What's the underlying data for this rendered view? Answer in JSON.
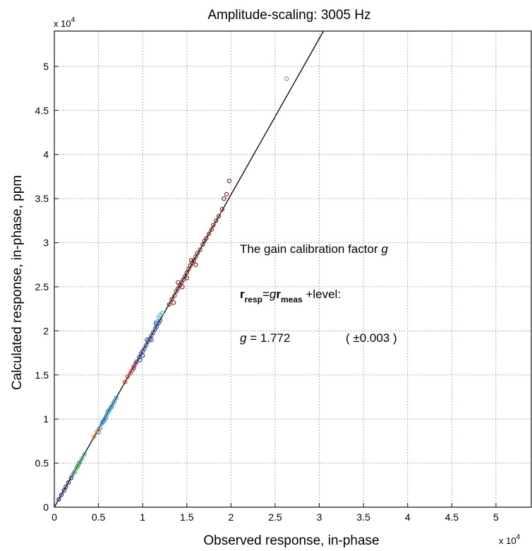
{
  "chart_data": {
    "type": "scatter",
    "title": "Amplitude-scaling:  3005 Hz",
    "xlabel": "Observed response, in-phase",
    "ylabel": "Calculated response, in-phase,  ppm",
    "x_multiplier": "x 10",
    "y_multiplier": "x 10",
    "multiplier_exponent": "4",
    "xlim": [
      0,
      5.4
    ],
    "ylim": [
      0,
      5.4
    ],
    "x_ticks": [
      "0",
      "0.5",
      "1",
      "1.5",
      "2",
      "2.5",
      "3",
      "3.5",
      "4",
      "4.5",
      "5"
    ],
    "y_ticks": [
      "0",
      "0.5",
      "1",
      "1.5",
      "2",
      "2.5",
      "3",
      "3.5",
      "4",
      "4.5",
      "5"
    ],
    "grid": true,
    "fit_line": {
      "slope": 1.772,
      "intercept": 0
    },
    "series": [
      {
        "color": "#1a1a7a",
        "points": [
          [
            0.05,
            0.09
          ],
          [
            0.08,
            0.14
          ],
          [
            0.11,
            0.19
          ],
          [
            0.13,
            0.23
          ],
          [
            0.16,
            0.28
          ],
          [
            0.19,
            0.33
          ]
        ]
      },
      {
        "color": "#2aa8a8",
        "points": [
          [
            0.2,
            0.36
          ],
          [
            0.23,
            0.4
          ],
          [
            0.26,
            0.46
          ],
          [
            0.28,
            0.5
          ],
          [
            0.31,
            0.55
          ],
          [
            0.34,
            0.6
          ]
        ]
      },
      {
        "color": "#58b848",
        "points": [
          [
            0.22,
            0.39
          ],
          [
            0.25,
            0.44
          ],
          [
            0.27,
            0.48
          ],
          [
            0.29,
            0.51
          ]
        ]
      },
      {
        "color": "#e07a20",
        "points": [
          [
            0.45,
            0.8
          ],
          [
            0.48,
            0.85
          ],
          [
            0.5,
            0.88
          ]
        ]
      },
      {
        "color": "#2f8fd8",
        "points": [
          [
            0.5,
            0.85
          ],
          [
            0.52,
            0.9
          ],
          [
            0.54,
            0.95
          ],
          [
            0.56,
            0.98
          ],
          [
            0.57,
            1.0
          ],
          [
            0.59,
            1.04
          ],
          [
            0.6,
            1.07
          ],
          [
            0.62,
            1.1
          ],
          [
            0.64,
            1.13
          ],
          [
            0.66,
            1.17
          ],
          [
            0.68,
            1.2
          ],
          [
            0.7,
            1.24
          ],
          [
            0.55,
            0.97
          ],
          [
            0.61,
            1.09
          ],
          [
            0.65,
            1.14
          ],
          [
            0.58,
            1.01
          ]
        ]
      },
      {
        "color": "#d83020",
        "points": [
          [
            0.8,
            1.42
          ],
          [
            0.83,
            1.48
          ],
          [
            0.86,
            1.52
          ],
          [
            0.88,
            1.55
          ],
          [
            0.9,
            1.6
          ],
          [
            0.92,
            1.63
          ]
        ]
      },
      {
        "color": "#2a3aa8",
        "points": [
          [
            0.9,
            1.58
          ],
          [
            0.93,
            1.65
          ],
          [
            0.96,
            1.7
          ],
          [
            0.98,
            1.74
          ],
          [
            1.0,
            1.77
          ],
          [
            1.02,
            1.8
          ],
          [
            1.04,
            1.84
          ],
          [
            1.06,
            1.88
          ],
          [
            1.08,
            1.91
          ],
          [
            1.1,
            1.95
          ],
          [
            1.12,
            1.98
          ],
          [
            1.14,
            2.02
          ],
          [
            1.16,
            2.05
          ],
          [
            1.18,
            2.09
          ],
          [
            1.2,
            2.12
          ],
          [
            1.0,
            1.72
          ],
          [
            1.05,
            1.9
          ],
          [
            1.1,
            1.9
          ],
          [
            1.15,
            2.08
          ],
          [
            0.97,
            1.67
          ]
        ]
      },
      {
        "color": "#3ab0d8",
        "points": [
          [
            1.15,
            2.1
          ],
          [
            1.18,
            2.15
          ],
          [
            1.2,
            2.18
          ],
          [
            1.22,
            2.2
          ]
        ]
      },
      {
        "color": "#7a1a14",
        "points": [
          [
            1.3,
            2.3
          ],
          [
            1.33,
            2.36
          ],
          [
            1.36,
            2.4
          ],
          [
            1.38,
            2.45
          ],
          [
            1.4,
            2.48
          ],
          [
            1.42,
            2.52
          ],
          [
            1.44,
            2.55
          ],
          [
            1.46,
            2.58
          ],
          [
            1.48,
            2.62
          ],
          [
            1.5,
            2.66
          ],
          [
            1.52,
            2.7
          ],
          [
            1.54,
            2.74
          ],
          [
            1.56,
            2.77
          ],
          [
            1.58,
            2.8
          ],
          [
            1.6,
            2.84
          ],
          [
            1.62,
            2.88
          ],
          [
            1.65,
            2.92
          ],
          [
            1.68,
            2.98
          ],
          [
            1.7,
            3.02
          ],
          [
            1.72,
            3.05
          ],
          [
            1.75,
            3.1
          ],
          [
            1.78,
            3.15
          ],
          [
            1.8,
            3.2
          ],
          [
            1.83,
            3.25
          ],
          [
            1.86,
            3.3
          ],
          [
            1.9,
            3.38
          ],
          [
            1.4,
            2.55
          ],
          [
            1.45,
            2.5
          ],
          [
            1.5,
            2.6
          ],
          [
            1.55,
            2.8
          ],
          [
            1.6,
            2.75
          ],
          [
            1.35,
            2.32
          ],
          [
            1.92,
            3.5
          ],
          [
            1.95,
            3.55
          ],
          [
            1.98,
            3.7
          ]
        ]
      },
      {
        "color": "#888888",
        "points": [
          [
            2.63,
            4.86
          ]
        ]
      }
    ],
    "annotations": {
      "line1_prefix": "The gain calibration factor ",
      "line1_sym": "g",
      "line2": {
        "r1": "r",
        "sub1": "resp",
        "eq": "=",
        "g": "g",
        "r2": "r",
        "sub2": "meas",
        "suffix": " +level:"
      },
      "line3": {
        "g": "g",
        "eq_value": " = 1.772",
        "uncertainty": "( ±0.003 )"
      }
    }
  }
}
